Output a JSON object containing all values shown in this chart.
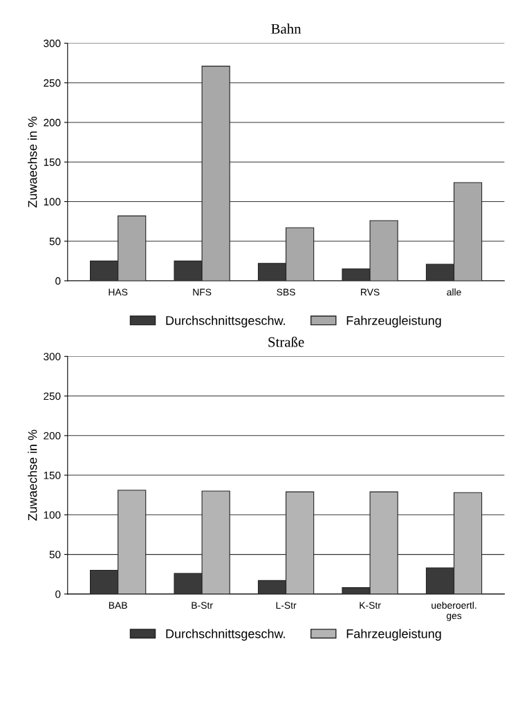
{
  "chart_data": [
    {
      "type": "bar",
      "title": "Bahn",
      "ylabel": "Zuwaechse in %",
      "categories": [
        "HAS",
        "NFS",
        "SBS",
        "RVS",
        "alle"
      ],
      "series": [
        {
          "name": "Durchschnittsgeschw.",
          "color": "#3a3a3a",
          "values": [
            25,
            25,
            22,
            15,
            21
          ]
        },
        {
          "name": "Fahrzeugleistung",
          "color": "#a8a8a8",
          "values": [
            82,
            271,
            67,
            76,
            124
          ]
        }
      ],
      "ylim": [
        0,
        300
      ],
      "yticks": [
        0,
        50,
        100,
        150,
        200,
        250,
        300
      ],
      "grid": "y",
      "legend": "bottom"
    },
    {
      "type": "bar",
      "title": "Straße",
      "ylabel": "Zuwaechse in %",
      "categories": [
        "BAB",
        "B-Str",
        "L-Str",
        "K-Str",
        "ueberoertl.\nges"
      ],
      "series": [
        {
          "name": "Durchschnittsgeschw.",
          "color": "#3a3a3a",
          "values": [
            30,
            26,
            17,
            8,
            33
          ]
        },
        {
          "name": "Fahrzeugleistung",
          "color": "#b4b4b4",
          "values": [
            131,
            130,
            129,
            129,
            128
          ]
        }
      ],
      "ylim": [
        0,
        300
      ],
      "yticks": [
        0,
        50,
        100,
        150,
        200,
        250,
        300
      ],
      "grid": "y",
      "legend": "bottom"
    }
  ]
}
